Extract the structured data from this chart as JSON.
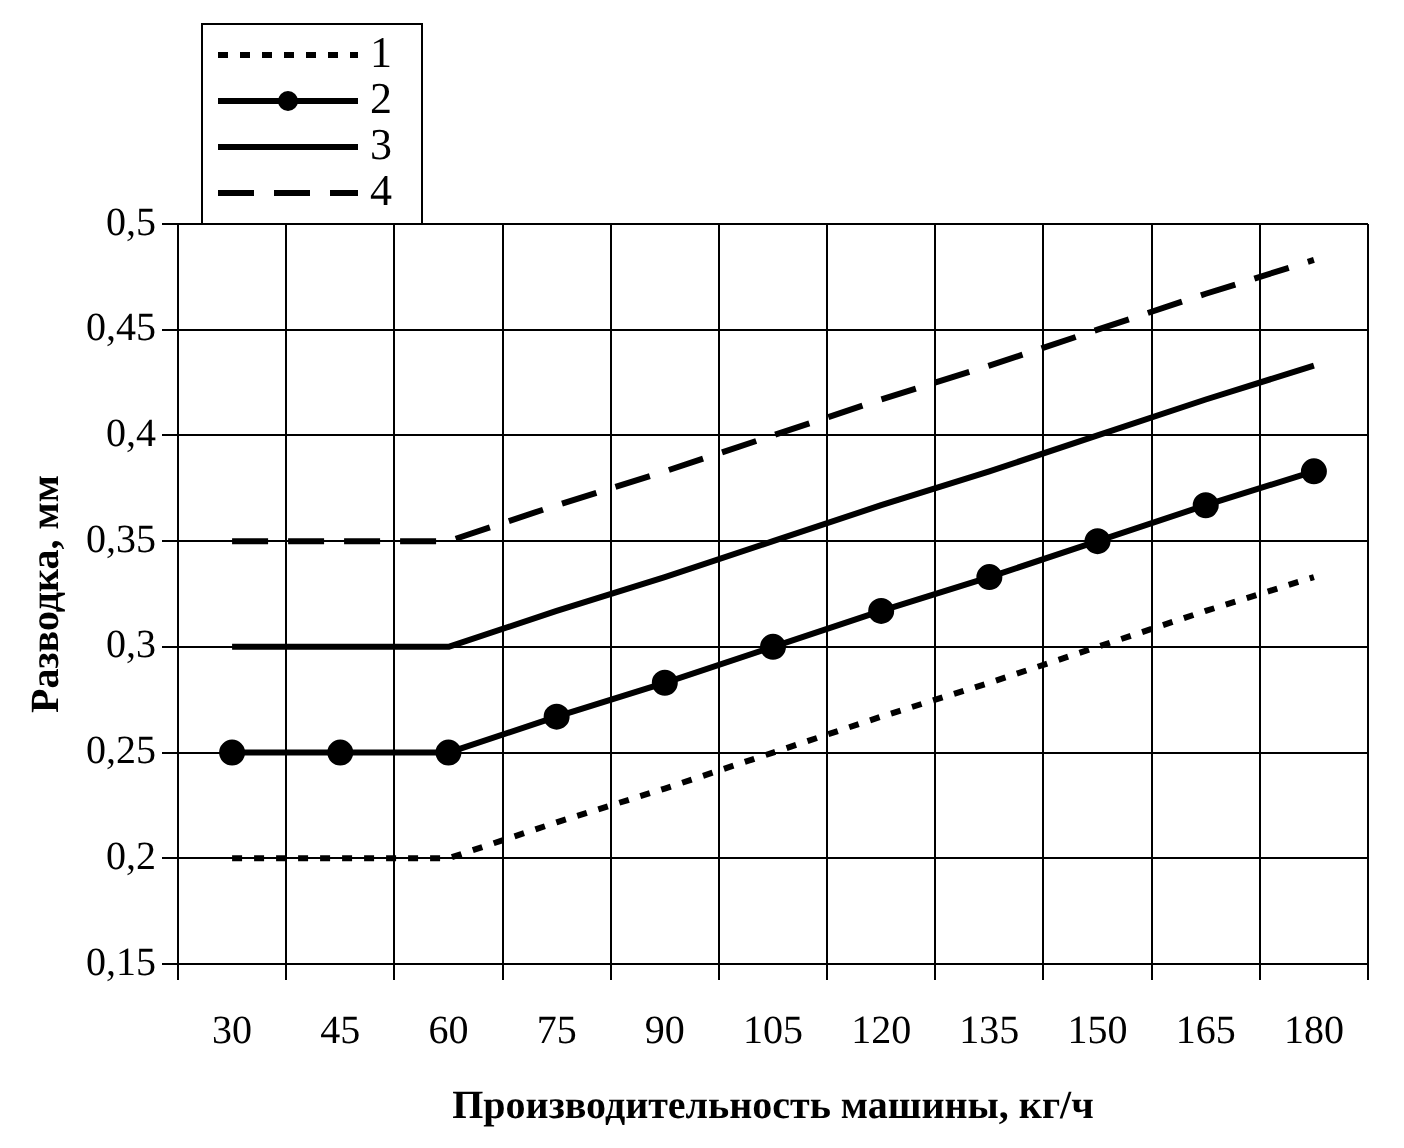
{
  "chart_data": {
    "type": "line",
    "xlabel": "Производительность машины, кг/ч",
    "ylabel": "Разводка, мм",
    "categories": [
      "30",
      "45",
      "60",
      "75",
      "90",
      "105",
      "120",
      "135",
      "150",
      "165",
      "180"
    ],
    "series": [
      {
        "name": "1",
        "color": "#000000",
        "line_style": "dotted",
        "marker": "none",
        "values": [
          0.2,
          0.2,
          0.2,
          0.217,
          0.233,
          0.25,
          0.267,
          0.283,
          0.3,
          0.317,
          0.333
        ]
      },
      {
        "name": "2",
        "color": "#000000",
        "line_style": "solid",
        "marker": "circle",
        "values": [
          0.25,
          0.25,
          0.25,
          0.267,
          0.283,
          0.3,
          0.317,
          0.333,
          0.35,
          0.367,
          0.383
        ]
      },
      {
        "name": "3",
        "color": "#000000",
        "line_style": "solid",
        "marker": "none",
        "values": [
          0.3,
          0.3,
          0.3,
          0.317,
          0.333,
          0.35,
          0.367,
          0.383,
          0.4,
          0.417,
          0.433
        ]
      },
      {
        "name": "4",
        "color": "#000000",
        "line_style": "dashed",
        "marker": "none",
        "values": [
          0.35,
          0.35,
          0.35,
          0.367,
          0.383,
          0.4,
          0.417,
          0.433,
          0.45,
          0.467,
          0.483
        ]
      }
    ],
    "ylim": [
      0.15,
      0.5
    ],
    "yticks": [
      {
        "value": 0.15,
        "label": "0,15"
      },
      {
        "value": 0.2,
        "label": "0,2"
      },
      {
        "value": 0.25,
        "label": "0,25"
      },
      {
        "value": 0.3,
        "label": "0,3"
      },
      {
        "value": 0.35,
        "label": "0,35"
      },
      {
        "value": 0.4,
        "label": "0,4"
      },
      {
        "value": 0.45,
        "label": "0,45"
      },
      {
        "value": 0.5,
        "label": "0,5"
      }
    ],
    "grid": true,
    "legend": "top left"
  }
}
